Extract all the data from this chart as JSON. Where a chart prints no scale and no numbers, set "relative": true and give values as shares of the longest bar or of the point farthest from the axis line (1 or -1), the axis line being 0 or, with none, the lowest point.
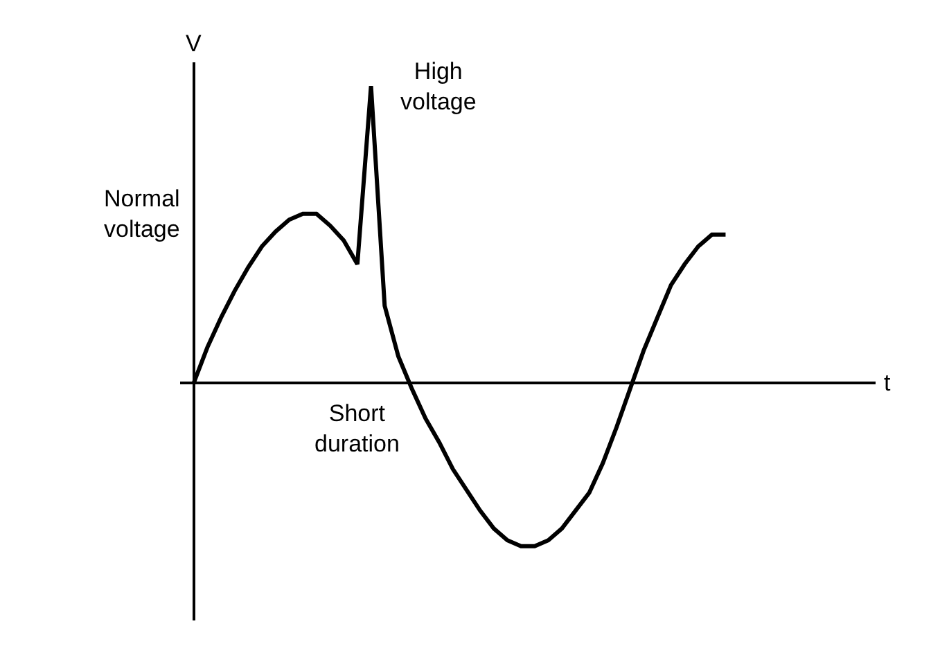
{
  "chart_data": {
    "type": "line",
    "relative": true,
    "color": "#000000",
    "categories": [
      null,
      null,
      null,
      null,
      null,
      null,
      null,
      null,
      null,
      null,
      null,
      null,
      null,
      null,
      null,
      null,
      null,
      null,
      null,
      null,
      null,
      null,
      null,
      null,
      null,
      null,
      null,
      null,
      null,
      null,
      null,
      null,
      null,
      null,
      null,
      null,
      null,
      null,
      null,
      null
    ],
    "values": [
      0,
      0.12,
      0.22,
      0.31,
      0.39,
      0.46,
      0.51,
      0.55,
      0.57,
      0.57,
      0.53,
      0.48,
      0.4,
      1,
      0.26,
      0.09,
      -0.02,
      -0.12,
      -0.2,
      -0.29,
      -0.36,
      -0.43,
      -0.49,
      -0.53,
      -0.55,
      -0.55,
      -0.53,
      -0.49,
      -0.43,
      -0.37,
      -0.27,
      -0.15,
      -0.02,
      0.11,
      0.22,
      0.33,
      0.4,
      0.46,
      0.5,
      0.5
    ],
    "annotations": [
      "Normal voltage",
      "High voltage",
      "Short duration",
      "V",
      "t"
    ],
    "legend": false,
    "marker": "none",
    "line_style": "solid"
  }
}
